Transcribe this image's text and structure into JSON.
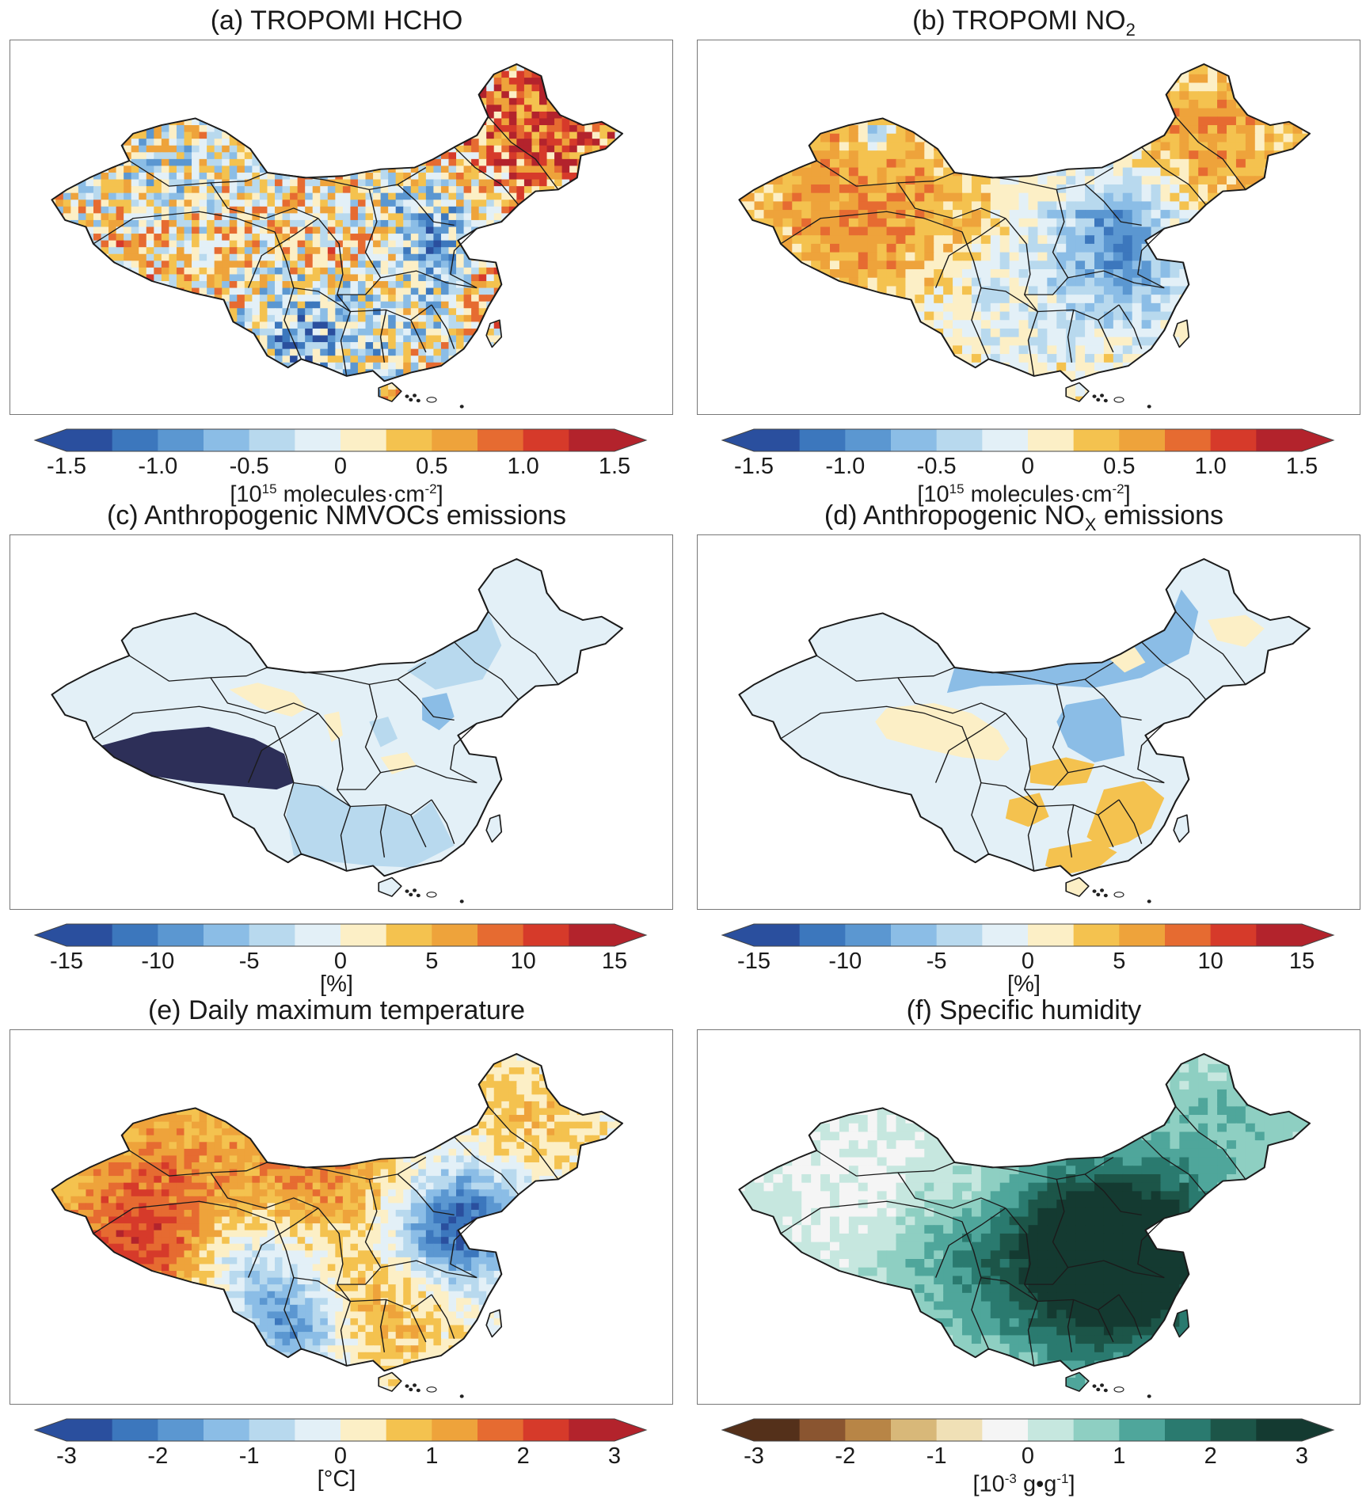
{
  "palettes": {
    "rdbu": [
      "#2a4f9e",
      "#3c77bd",
      "#5b97d1",
      "#8bbde6",
      "#b8d9ee",
      "#e3f0f7",
      "#fcefc6",
      "#f4c24f",
      "#eea33b",
      "#e66b31",
      "#d63a2a",
      "#b3232c"
    ],
    "brbg": [
      "#54301a",
      "#8a5530",
      "#b88546",
      "#d8b879",
      "#f0e0b6",
      "#f5f5f5",
      "#c6e7df",
      "#8ecfc2",
      "#4fa69b",
      "#2a7a6f",
      "#1c5548",
      "#143a31"
    ]
  },
  "panels": [
    {
      "id": "a",
      "title": "(a) TROPOMI HCHO",
      "title_sub": "",
      "unit_pre": "[10",
      "unit_sup": "15",
      "unit_post": " molecules·cm",
      "unit_sup2": "-2",
      "unit_end": "]",
      "palette": "rdbu",
      "render": "noise",
      "ticks": [
        "-1.5",
        "-1.0",
        "-0.5",
        "0",
        "0.5",
        "1.0",
        "1.5"
      ]
    },
    {
      "id": "b",
      "title": "(b) TROPOMI NO",
      "title_sub": "2",
      "unit_pre": "[10",
      "unit_sup": "15",
      "unit_post": " molecules·cm",
      "unit_sup2": "-2",
      "unit_end": "]",
      "palette": "rdbu",
      "render": "noise",
      "ticks": [
        "-1.5",
        "-1.0",
        "-0.5",
        "0",
        "0.5",
        "1.0",
        "1.5"
      ]
    },
    {
      "id": "c",
      "title": "(c) Anthropogenic NMVOCs emissions",
      "title_sub": "",
      "unit_pre": "[%]",
      "unit_sup": "",
      "unit_post": "",
      "unit_sup2": "",
      "unit_end": "",
      "palette": "rdbu",
      "render": "regions",
      "ticks": [
        "-15",
        "-10",
        "-5",
        "0",
        "5",
        "10",
        "15"
      ]
    },
    {
      "id": "d",
      "title": "(d) Anthropogenic NO",
      "title_sub": "X",
      "title_tail": " emissions",
      "unit_pre": "[%]",
      "unit_sup": "",
      "unit_post": "",
      "unit_sup2": "",
      "unit_end": "",
      "palette": "rdbu",
      "render": "regions",
      "ticks": [
        "-15",
        "-10",
        "-5",
        "0",
        "5",
        "10",
        "15"
      ]
    },
    {
      "id": "e",
      "title": "(e) Daily maximum temperature",
      "title_sub": "",
      "unit_pre": "[°C]",
      "unit_sup": "",
      "unit_post": "",
      "unit_sup2": "",
      "unit_end": "",
      "palette": "rdbu",
      "render": "noise",
      "ticks": [
        "-3",
        "-2",
        "-1",
        "0",
        "1",
        "2",
        "3"
      ]
    },
    {
      "id": "f",
      "title": "(f) Specific humidity",
      "title_sub": "",
      "unit_pre": "[10",
      "unit_sup": "-3",
      "unit_post": "  g•g",
      "unit_sup2": "-1",
      "unit_end": "]",
      "palette": "brbg",
      "render": "noise",
      "ticks": [
        "-3",
        "-2",
        "-1",
        "0",
        "1",
        "2",
        "3"
      ]
    }
  ]
}
